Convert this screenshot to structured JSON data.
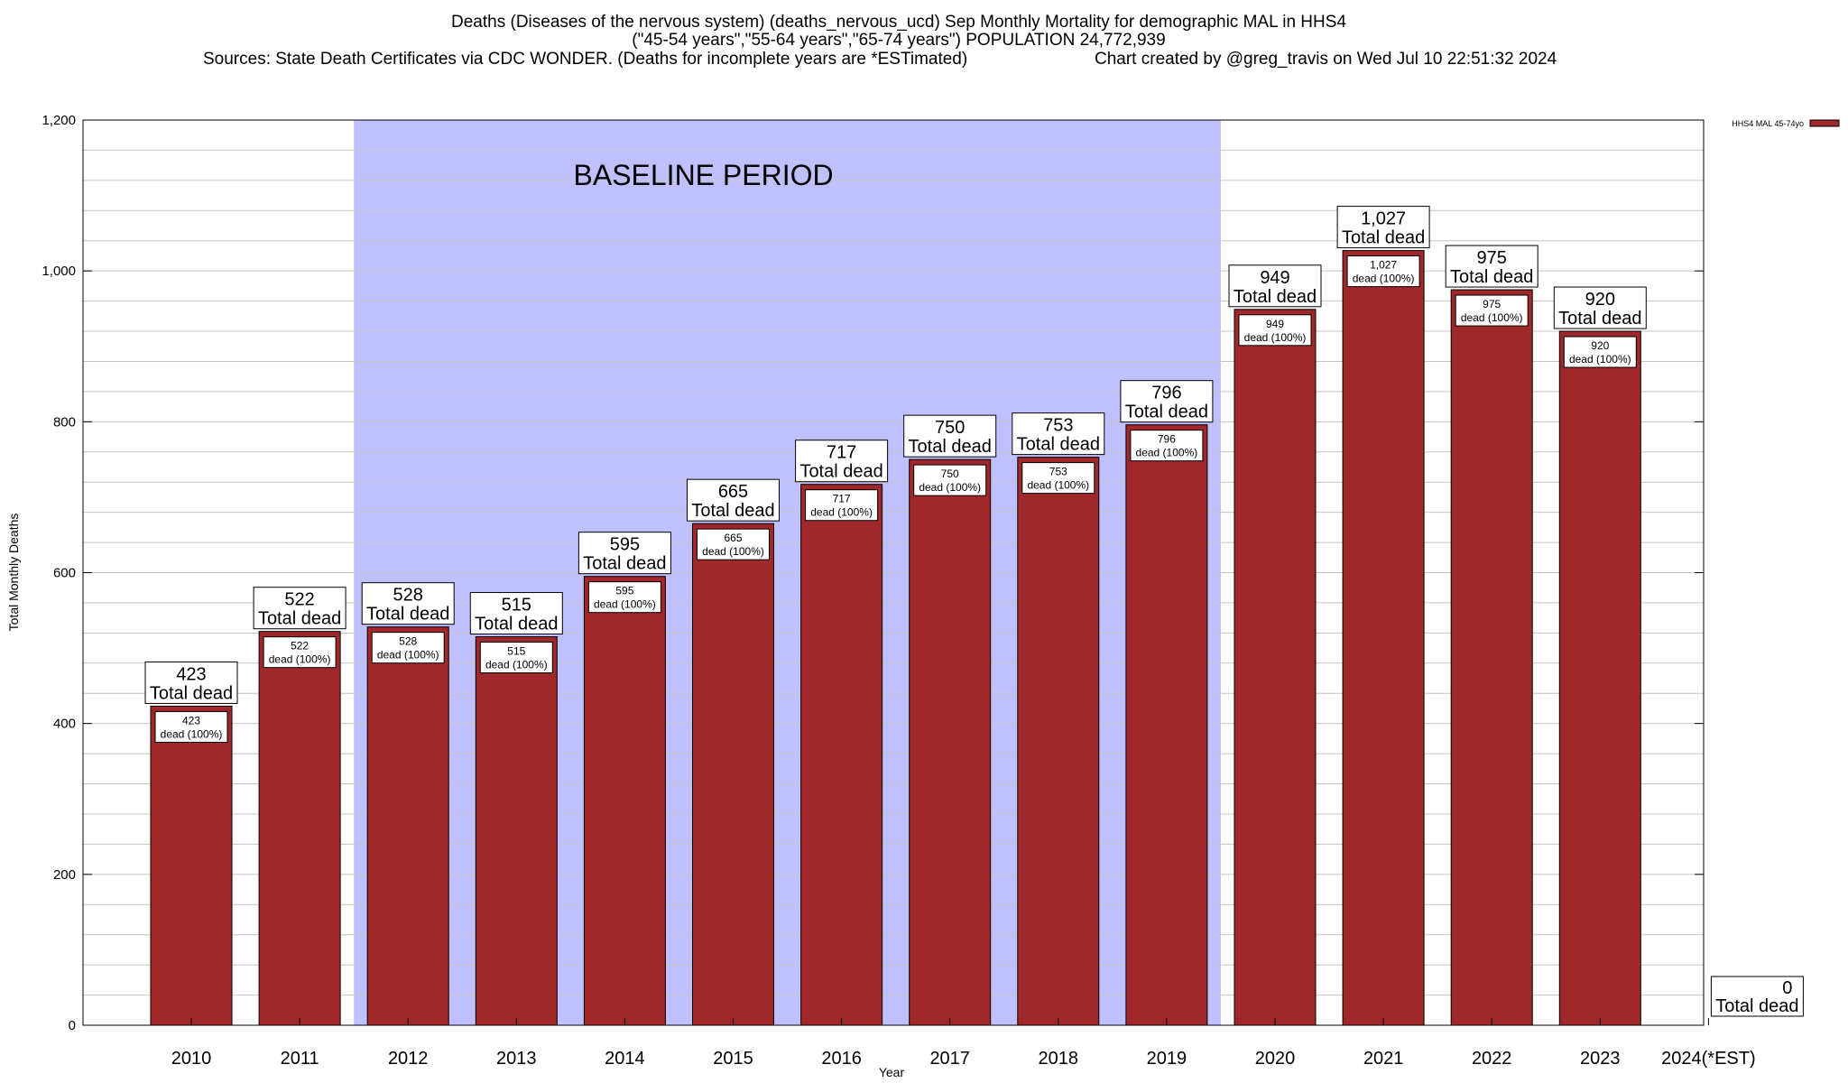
{
  "titles": {
    "line1": "Deaths (Diseases of the nervous system) (deaths_nervous_ucd) Sep Monthly Mortality for demographic MAL in HHS4",
    "line2": "(\"45-54 years\",\"55-64 years\",\"65-74 years\") POPULATION 24,772,939",
    "line3_left": "Sources: State Death Certificates via CDC WONDER. (Deaths for incomplete years are *ESTimated)",
    "line3_right": "Chart created by @greg_travis on Wed Jul 10 22:51:32 2024"
  },
  "chart_data": {
    "type": "bar",
    "xlabel": "Year",
    "ylabel": "Total Monthly Deaths",
    "ylim": [
      0,
      1200
    ],
    "yticks": [
      0,
      200,
      400,
      600,
      800,
      1000,
      1200
    ],
    "ytick_labels": [
      "0",
      "200",
      "400",
      "600",
      "800",
      "1,000",
      "1,200"
    ],
    "categories": [
      "2010",
      "2011",
      "2012",
      "2013",
      "2014",
      "2015",
      "2016",
      "2017",
      "2018",
      "2019",
      "2020",
      "2021",
      "2022",
      "2023",
      "2024(*EST)"
    ],
    "series": [
      {
        "name": "HHS4 MAL 45-74yo",
        "color": "#a0282b",
        "values": [
          423,
          522,
          528,
          515,
          595,
          665,
          717,
          750,
          753,
          796,
          949,
          1027,
          975,
          920,
          0
        ]
      }
    ],
    "value_labels": [
      "423",
      "522",
      "528",
      "515",
      "595",
      "665",
      "717",
      "750",
      "753",
      "796",
      "949",
      "1,027",
      "975",
      "920",
      "0"
    ],
    "total_label_word": "Total dead",
    "inner_label_suffix": "dead (100%)",
    "baseline_period": {
      "label": "BASELINE PERIOD",
      "start": "2012",
      "end": "2019",
      "color": "#c0c0ff"
    },
    "legend": {
      "placement": "top-right",
      "entry": "HHS4 MAL 45-74yo"
    },
    "grid": true
  }
}
